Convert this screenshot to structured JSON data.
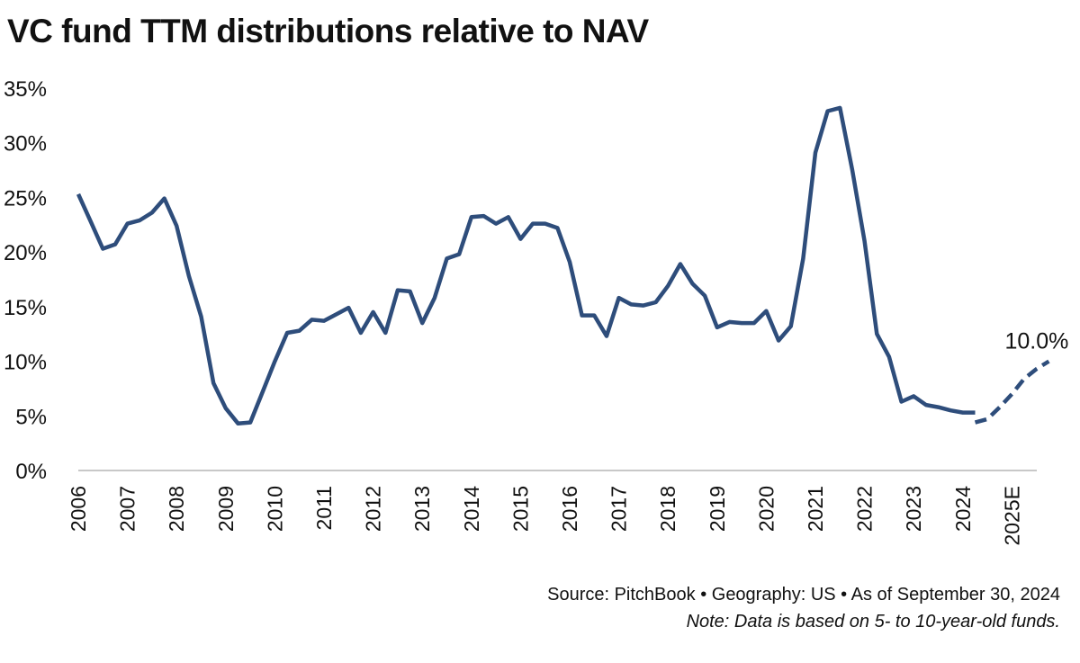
{
  "chart_data": {
    "type": "line",
    "title": "VC fund TTM distributions relative to NAV",
    "ylim": [
      0,
      35
    ],
    "y_ticks": [
      "0%",
      "5%",
      "10%",
      "15%",
      "20%",
      "25%",
      "30%",
      "35%"
    ],
    "x_ticks": [
      "2006",
      "2007",
      "2008",
      "2009",
      "2010",
      "2011",
      "2012",
      "2013",
      "2014",
      "2015",
      "2016",
      "2017",
      "2018",
      "2019",
      "2020",
      "2021",
      "2022",
      "2023",
      "2024",
      "2025E"
    ],
    "grid": false,
    "x_unit": "year",
    "series": [
      {
        "name": "",
        "line_style": "solid",
        "color": "#2e4d7b",
        "x": [
          2006.0,
          2006.25,
          2006.5,
          2006.75,
          2007.0,
          2007.25,
          2007.5,
          2007.75,
          2008.0,
          2008.25,
          2008.5,
          2008.75,
          2009.0,
          2009.25,
          2009.5,
          2009.75,
          2010.0,
          2010.25,
          2010.5,
          2010.75,
          2011.0,
          2011.25,
          2011.5,
          2011.75,
          2012.0,
          2012.25,
          2012.5,
          2012.75,
          2013.0,
          2013.25,
          2013.5,
          2013.75,
          2014.0,
          2014.25,
          2014.5,
          2014.75,
          2015.0,
          2015.25,
          2015.5,
          2015.75,
          2016.0,
          2016.25,
          2016.5,
          2016.75,
          2017.0,
          2017.25,
          2017.5,
          2017.75,
          2018.0,
          2018.25,
          2018.5,
          2018.75,
          2019.0,
          2019.25,
          2019.5,
          2019.75,
          2020.0,
          2020.25,
          2020.5,
          2020.75,
          2021.0,
          2021.25,
          2021.5,
          2021.75,
          2022.0,
          2022.25,
          2022.5,
          2022.75,
          2023.0,
          2023.25,
          2023.5,
          2023.75,
          2024.0,
          2024.25
        ],
        "values": [
          25.3,
          22.8,
          20.3,
          20.7,
          22.6,
          22.9,
          23.6,
          24.9,
          22.4,
          17.8,
          14.1,
          8.0,
          5.7,
          4.3,
          4.4,
          7.2,
          10.0,
          12.6,
          12.8,
          13.8,
          13.7,
          14.3,
          14.9,
          12.6,
          14.5,
          12.6,
          16.5,
          16.4,
          13.5,
          15.8,
          19.4,
          19.8,
          23.2,
          23.3,
          22.6,
          23.2,
          21.2,
          22.6,
          22.6,
          22.2,
          19.1,
          14.2,
          14.2,
          12.3,
          15.8,
          15.2,
          15.1,
          15.4,
          16.9,
          18.9,
          17.1,
          16.0,
          13.1,
          13.6,
          13.5,
          13.5,
          14.6,
          11.9,
          13.2,
          19.4,
          29.1,
          32.9,
          33.2,
          27.5,
          21.0,
          12.5,
          10.4,
          6.3,
          6.8,
          6.0,
          5.8,
          5.5,
          5.3,
          5.3
        ]
      },
      {
        "name": "",
        "line_style": "dashed",
        "color": "#2e4d7b",
        "x": [
          2024.25,
          2024.5,
          2024.75,
          2025.0,
          2025.25,
          2025.5,
          2025.75
        ],
        "values": [
          4.4,
          4.7,
          5.8,
          7.0,
          8.4,
          9.3,
          10.0
        ]
      }
    ],
    "annotations": [
      {
        "text": "10.0%",
        "x": 2025.75,
        "y": 10.0
      }
    ]
  },
  "footer": {
    "source": "Source: PitchBook  •  Geography: US  •  As of September 30, 2024",
    "note": "Note: Data is based on 5- to 10-year-old funds."
  }
}
